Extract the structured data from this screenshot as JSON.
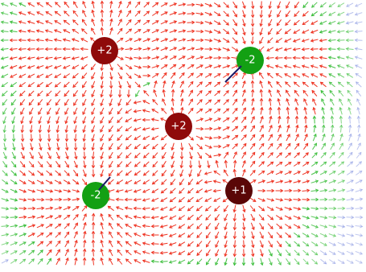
{
  "simulation": {
    "view": "electric-field",
    "field_vectors_visible": true,
    "charges": [
      {
        "id": "charge-1",
        "label": "+2",
        "sign": "positive",
        "color": "#8f0a0a"
      },
      {
        "id": "charge-2",
        "label": "-2",
        "sign": "negative",
        "color": "#13a013"
      },
      {
        "id": "charge-3",
        "label": "+2",
        "sign": "positive",
        "color": "#8f0a0a"
      },
      {
        "id": "charge-4",
        "label": "-2",
        "sign": "negative",
        "color": "#13a013"
      },
      {
        "id": "charge-5",
        "label": "+1",
        "sign": "positive",
        "color": "#5a0707"
      }
    ],
    "colors": {
      "weak_field": "#7788dd",
      "medium_field": "#33bb33",
      "strong_field": "#ee3322"
    }
  }
}
